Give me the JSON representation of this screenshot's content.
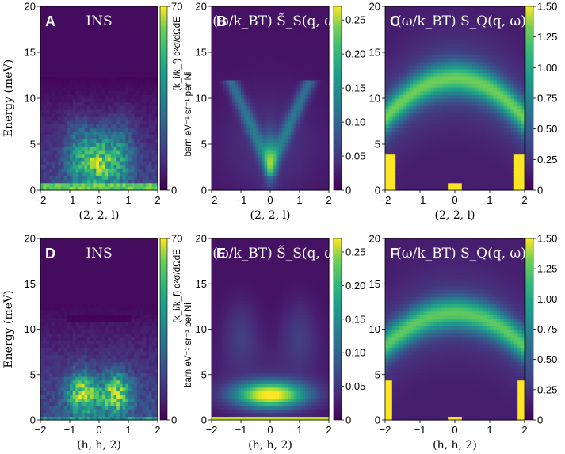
{
  "chart_data": [
    {
      "id": "A",
      "letter": "A",
      "type": "heatmap",
      "kind": "INS",
      "title": "INS",
      "xlabel": "(2, 2, l)",
      "ylabel": "Energy (meV)",
      "xlim": [
        -2,
        2
      ],
      "ylim": [
        0,
        20
      ],
      "xticks": [
        "−2",
        "−1",
        "0",
        "1",
        "2"
      ],
      "yticks": [
        "0",
        "5",
        "10",
        "15",
        "20"
      ],
      "colorbar": {
        "range": [
          0,
          70
        ],
        "ticks": [
          "70",
          "0"
        ],
        "label": "barn eV⁻¹ sr⁻¹ per Ni",
        "formula": "(k_i/k_f) d²σ/dΩdE"
      }
    },
    {
      "id": "B",
      "letter": "B",
      "type": "heatmap",
      "kind": "S",
      "title": "(ω/k_BT) S̃_S(q, ω)",
      "xlabel": "(2, 2, l)",
      "ylabel": "",
      "xlim": [
        -2,
        2
      ],
      "ylim": [
        0,
        20
      ],
      "xticks": [
        "−2",
        "−1",
        "0",
        "1",
        "2"
      ],
      "yticks": [
        "0",
        "5",
        "10",
        "15",
        "20"
      ],
      "colorbar": {
        "range": [
          0,
          0.27
        ],
        "ticks": [
          "0.25",
          "0.20",
          "0.15",
          "0.10",
          "0.05",
          "0"
        ]
      }
    },
    {
      "id": "C",
      "letter": "C",
      "type": "heatmap",
      "kind": "Q",
      "title": "(ω/k_BT) S_Q(q, ω)",
      "xlabel": "(2, 2, l)",
      "ylabel": "",
      "xlim": [
        -2,
        2
      ],
      "ylim": [
        0,
        20
      ],
      "xticks": [
        "−2",
        "−1",
        "0",
        "1",
        "2"
      ],
      "yticks": [
        "0",
        "5",
        "10",
        "15",
        "20"
      ],
      "colorbar": {
        "range": [
          0,
          1.5
        ],
        "ticks": [
          "1.50",
          "1.25",
          "1.00",
          "0.75",
          "0.50",
          "0.25",
          "0"
        ]
      }
    },
    {
      "id": "D",
      "letter": "D",
      "type": "heatmap",
      "kind": "INS2",
      "title": "INS",
      "xlabel": "(h, h, 2)",
      "ylabel": "Energy (meV)",
      "xlim": [
        -2,
        2
      ],
      "ylim": [
        0,
        20
      ],
      "xticks": [
        "−2",
        "−1",
        "0",
        "1",
        "2"
      ],
      "yticks": [
        "0",
        "5",
        "10",
        "15",
        "20"
      ],
      "colorbar": {
        "range": [
          0,
          70
        ],
        "ticks": [
          "70",
          "0"
        ],
        "label": "barn eV⁻¹ sr⁻¹ per Ni",
        "formula": "(k_i/k_f) d²σ/dΩdE"
      }
    },
    {
      "id": "E",
      "letter": "E",
      "type": "heatmap",
      "kind": "S2",
      "title": "(ω/k_BT) S̃_S(q, ω)",
      "xlabel": "(h, h, 2)",
      "ylabel": "",
      "xlim": [
        -2,
        2
      ],
      "ylim": [
        0,
        20
      ],
      "xticks": [
        "−2",
        "−1",
        "0",
        "1",
        "2"
      ],
      "yticks": [
        "0",
        "5",
        "10",
        "15",
        "20"
      ],
      "colorbar": {
        "range": [
          0,
          0.27
        ],
        "ticks": [
          "0.25",
          "0.20",
          "0.15",
          "0.10",
          "0.05",
          "0"
        ]
      }
    },
    {
      "id": "F",
      "letter": "F",
      "type": "heatmap",
      "kind": "Q2",
      "title": "(ω/k_BT) S_Q(q, ω)",
      "xlabel": "(h, h, 2)",
      "ylabel": "",
      "xlim": [
        -2,
        2
      ],
      "ylim": [
        0,
        20
      ],
      "xticks": [
        "−2",
        "−1",
        "0",
        "1",
        "2"
      ],
      "yticks": [
        "0",
        "5",
        "10",
        "15",
        "20"
      ],
      "colorbar": {
        "range": [
          0,
          1.5
        ],
        "ticks": [
          "1.50",
          "1.25",
          "1.00",
          "0.75",
          "0.50",
          "0.25",
          "0"
        ]
      }
    }
  ]
}
